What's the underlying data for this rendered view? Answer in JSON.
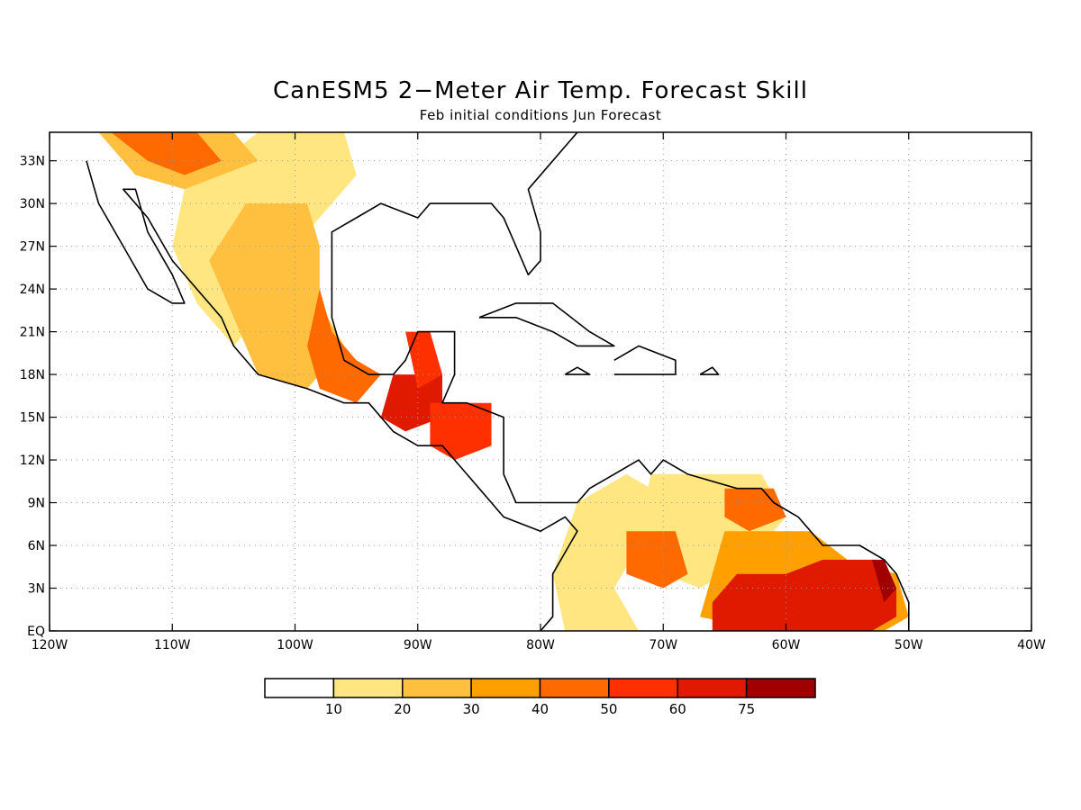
{
  "title": "CanESM5 2−Meter Air Temp. Forecast Skill",
  "subtitle": "Feb initial conditions  Jun Forecast",
  "map": {
    "lon_range": [
      -120,
      -40
    ],
    "lat_range": [
      0,
      35
    ],
    "lon_ticks": [
      {
        "value": -120,
        "label": "120W"
      },
      {
        "value": -110,
        "label": "110W"
      },
      {
        "value": -100,
        "label": "100W"
      },
      {
        "value": -90,
        "label": "90W"
      },
      {
        "value": -80,
        "label": "80W"
      },
      {
        "value": -70,
        "label": "70W"
      },
      {
        "value": -60,
        "label": "60W"
      },
      {
        "value": -50,
        "label": "50W"
      },
      {
        "value": -40,
        "label": "40W"
      }
    ],
    "lat_ticks": [
      {
        "value": 0,
        "label": "EQ"
      },
      {
        "value": 3,
        "label": "3N"
      },
      {
        "value": 6,
        "label": "6N"
      },
      {
        "value": 9,
        "label": "9N"
      },
      {
        "value": 12,
        "label": "12N"
      },
      {
        "value": 15,
        "label": "15N"
      },
      {
        "value": 18,
        "label": "18N"
      },
      {
        "value": 21,
        "label": "21N"
      },
      {
        "value": 24,
        "label": "24N"
      },
      {
        "value": 27,
        "label": "27N"
      },
      {
        "value": 30,
        "label": "30N"
      },
      {
        "value": 33,
        "label": "33N"
      }
    ],
    "grid": "dotted"
  },
  "colorbar": {
    "colors": [
      "#ffffff",
      "#ffe680",
      "#ffc040",
      "#ffa000",
      "#ff6a00",
      "#ff3000",
      "#e01a00",
      "#a00000"
    ],
    "labels": [
      "10",
      "20",
      "30",
      "40",
      "50",
      "60",
      "75"
    ]
  },
  "skill_regions": [
    {
      "name": "mexico-north",
      "level": 1,
      "lonlat": [
        [
          -103,
          35
        ],
        [
          -96,
          35
        ],
        [
          -95,
          32
        ],
        [
          -97,
          30
        ],
        [
          -99,
          28
        ],
        [
          -101,
          25
        ],
        [
          -103,
          22
        ],
        [
          -105,
          20
        ],
        [
          -108,
          23
        ],
        [
          -110,
          27
        ],
        [
          -109,
          31
        ],
        [
          -106,
          33
        ]
      ]
    },
    {
      "name": "mexico-central",
      "level": 2,
      "lonlat": [
        [
          -104,
          30
        ],
        [
          -99,
          30
        ],
        [
          -98,
          27
        ],
        [
          -98,
          23
        ],
        [
          -96,
          20
        ],
        [
          -99,
          17
        ],
        [
          -103,
          18
        ],
        [
          -105,
          22
        ],
        [
          -107,
          26
        ]
      ]
    },
    {
      "name": "sonora",
      "level": 2,
      "lonlat": [
        [
          -116,
          35
        ],
        [
          -105,
          35
        ],
        [
          -103,
          33
        ],
        [
          -106,
          32
        ],
        [
          -109,
          31
        ],
        [
          -113,
          32
        ]
      ]
    },
    {
      "name": "sonora-core",
      "level": 4,
      "lonlat": [
        [
          -115,
          35
        ],
        [
          -108,
          35
        ],
        [
          -106,
          33
        ],
        [
          -109,
          32
        ],
        [
          -112,
          33
        ]
      ]
    },
    {
      "name": "veracruz",
      "level": 4,
      "lonlat": [
        [
          -98,
          24
        ],
        [
          -97,
          21
        ],
        [
          -95,
          19
        ],
        [
          -93,
          18
        ],
        [
          -95,
          16
        ],
        [
          -98,
          17
        ],
        [
          -99,
          20
        ]
      ]
    },
    {
      "name": "guatemala",
      "level": 6,
      "lonlat": [
        [
          -92,
          18
        ],
        [
          -88,
          18
        ],
        [
          -88,
          15
        ],
        [
          -91,
          14
        ],
        [
          -93,
          15
        ]
      ]
    },
    {
      "name": "yucatan",
      "level": 5,
      "lonlat": [
        [
          -91,
          21
        ],
        [
          -89,
          21
        ],
        [
          -88,
          18
        ],
        [
          -90,
          17
        ]
      ]
    },
    {
      "name": "honduras",
      "level": 5,
      "lonlat": [
        [
          -89,
          16
        ],
        [
          -84,
          16
        ],
        [
          -84,
          13
        ],
        [
          -87,
          12
        ],
        [
          -89,
          13
        ]
      ]
    },
    {
      "name": "colombia",
      "level": 1,
      "lonlat": [
        [
          -77,
          9
        ],
        [
          -73,
          11
        ],
        [
          -71,
          10
        ],
        [
          -72,
          6
        ],
        [
          -74,
          3
        ],
        [
          -72,
          0
        ],
        [
          -78,
          0
        ],
        [
          -79,
          4
        ]
      ]
    },
    {
      "name": "venezuela",
      "level": 1,
      "lonlat": [
        [
          -71,
          11
        ],
        [
          -62,
          11
        ],
        [
          -60,
          8
        ],
        [
          -63,
          5
        ],
        [
          -67,
          3
        ],
        [
          -70,
          4
        ],
        [
          -72,
          7
        ]
      ]
    },
    {
      "name": "venezuela-hot",
      "level": 4,
      "lonlat": [
        [
          -73,
          7
        ],
        [
          -69,
          7
        ],
        [
          -68,
          4
        ],
        [
          -70,
          3
        ],
        [
          -73,
          4
        ]
      ]
    },
    {
      "name": "orinoco",
      "level": 4,
      "lonlat": [
        [
          -65,
          10
        ],
        [
          -61,
          10
        ],
        [
          -60,
          8
        ],
        [
          -63,
          7
        ],
        [
          -65,
          8
        ]
      ]
    },
    {
      "name": "guiana",
      "level": 3,
      "lonlat": [
        [
          -65,
          7
        ],
        [
          -58,
          7
        ],
        [
          -55,
          5
        ],
        [
          -51,
          4
        ],
        [
          -50,
          1
        ],
        [
          -52,
          0
        ],
        [
          -62,
          0
        ],
        [
          -67,
          1
        ],
        [
          -66,
          4
        ]
      ]
    },
    {
      "name": "amazon-north",
      "level": 6,
      "lonlat": [
        [
          -64,
          4
        ],
        [
          -60,
          4
        ],
        [
          -57,
          5
        ],
        [
          -53,
          5
        ],
        [
          -51,
          3
        ],
        [
          -51,
          1
        ],
        [
          -53,
          0
        ],
        [
          -66,
          0
        ],
        [
          -66,
          2
        ]
      ]
    },
    {
      "name": "amazon-east",
      "level": 7,
      "lonlat": [
        [
          -53,
          5
        ],
        [
          -52,
          5
        ],
        [
          -51,
          3
        ],
        [
          -52,
          2
        ]
      ]
    }
  ],
  "land_outlines": [
    {
      "name": "mexico-coast",
      "lonlat": [
        [
          -117,
          33
        ],
        [
          -116,
          30
        ],
        [
          -114,
          27
        ],
        [
          -112,
          24
        ],
        [
          -110,
          23
        ],
        [
          -109,
          23
        ],
        [
          -110,
          25
        ],
        [
          -112,
          28
        ],
        [
          -113,
          31
        ],
        [
          -114,
          31
        ],
        [
          -112,
          29
        ],
        [
          -110,
          26
        ],
        [
          -108,
          24
        ],
        [
          -106,
          22
        ],
        [
          -105,
          20
        ],
        [
          -103,
          18
        ],
        [
          -99,
          17
        ],
        [
          -96,
          16
        ],
        [
          -94,
          16
        ],
        [
          -92,
          14
        ],
        [
          -90,
          13
        ],
        [
          -88,
          13
        ],
        [
          -86,
          11
        ],
        [
          -85,
          10
        ],
        [
          -83,
          8
        ],
        [
          -80,
          7
        ],
        [
          -78,
          8
        ],
        [
          -77,
          7
        ],
        [
          -79,
          4
        ],
        [
          -79,
          1
        ],
        [
          -80,
          0
        ]
      ]
    },
    {
      "name": "gulf-coast",
      "lonlat": [
        [
          -97,
          26
        ],
        [
          -97,
          22
        ],
        [
          -96,
          19
        ],
        [
          -94,
          18
        ],
        [
          -92,
          18
        ],
        [
          -91,
          19
        ],
        [
          -90,
          21
        ],
        [
          -87,
          21
        ],
        [
          -87,
          18
        ],
        [
          -88,
          16
        ],
        [
          -86,
          16
        ],
        [
          -83,
          15
        ],
        [
          -83,
          11
        ],
        [
          -82,
          9
        ],
        [
          -79,
          9
        ],
        [
          -77,
          9
        ],
        [
          -76,
          10
        ],
        [
          -74,
          11
        ],
        [
          -72,
          12
        ],
        [
          -71,
          11
        ],
        [
          -70,
          12
        ],
        [
          -68,
          11
        ],
        [
          -64,
          10
        ],
        [
          -62,
          10
        ],
        [
          -61,
          9
        ],
        [
          -59,
          8
        ],
        [
          -57,
          6
        ],
        [
          -54,
          6
        ],
        [
          -52,
          5
        ],
        [
          -51,
          4
        ],
        [
          -50,
          2
        ],
        [
          -50,
          0
        ]
      ]
    },
    {
      "name": "us-gulf",
      "lonlat": [
        [
          -97,
          26
        ],
        [
          -97,
          28
        ],
        [
          -95,
          29
        ],
        [
          -93,
          30
        ],
        [
          -90,
          29
        ],
        [
          -89,
          30
        ],
        [
          -86,
          30
        ],
        [
          -84,
          30
        ],
        [
          -83,
          29
        ],
        [
          -82,
          27
        ],
        [
          -81,
          25
        ],
        [
          -80,
          26
        ],
        [
          -80,
          28
        ],
        [
          -81,
          31
        ],
        [
          -79,
          33
        ],
        [
          -77,
          35
        ]
      ]
    },
    {
      "name": "cuba",
      "lonlat": [
        [
          -85,
          22
        ],
        [
          -82,
          23
        ],
        [
          -79,
          23
        ],
        [
          -76,
          21
        ],
        [
          -74,
          20
        ],
        [
          -77,
          20
        ],
        [
          -79,
          21
        ],
        [
          -82,
          22
        ],
        [
          -85,
          22
        ]
      ]
    },
    {
      "name": "hispaniola",
      "lonlat": [
        [
          -74,
          19
        ],
        [
          -72,
          20
        ],
        [
          -69,
          19
        ],
        [
          -69,
          18
        ],
        [
          -72,
          18
        ],
        [
          -74,
          18
        ]
      ]
    },
    {
      "name": "puerto-rico",
      "lonlat": [
        [
          -67,
          18
        ],
        [
          -66,
          18.5
        ],
        [
          -65.5,
          18
        ],
        [
          -67,
          18
        ]
      ]
    },
    {
      "name": "jamaica",
      "lonlat": [
        [
          -78,
          18
        ],
        [
          -77,
          18.5
        ],
        [
          -76,
          18
        ],
        [
          -78,
          18
        ]
      ]
    }
  ]
}
